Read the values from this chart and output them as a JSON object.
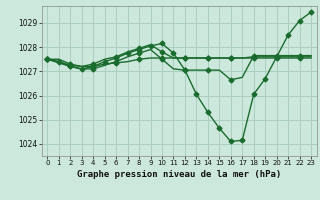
{
  "title": "Graphe pression niveau de la mer (hPa)",
  "background_color": "#cce8dc",
  "grid_color": "#aacfbf",
  "line_color": "#1a6b2e",
  "x_ticks": [
    0,
    1,
    2,
    3,
    4,
    5,
    6,
    7,
    8,
    9,
    10,
    11,
    12,
    13,
    14,
    15,
    16,
    17,
    18,
    19,
    20,
    21,
    22,
    23
  ],
  "ylim": [
    1023.5,
    1029.7
  ],
  "yticks": [
    1024,
    1025,
    1026,
    1027,
    1028,
    1029
  ],
  "series": [
    [
      1027.5,
      1027.5,
      1027.3,
      1027.2,
      1027.2,
      1027.3,
      1027.35,
      1027.4,
      1027.5,
      1027.55,
      1027.55,
      1027.55,
      1027.55,
      1027.55,
      1027.55,
      1027.55,
      1027.55,
      1027.55,
      1027.6,
      1027.6,
      1027.6,
      1027.6,
      1027.6,
      1027.6
    ],
    [
      1027.5,
      1027.4,
      1027.2,
      1027.1,
      1027.2,
      1027.4,
      1027.55,
      1027.75,
      1027.9,
      1028.05,
      1028.15,
      1027.75,
      1027.05,
      1026.05,
      1025.3,
      1024.65,
      1024.1,
      1024.15,
      1026.05,
      1026.7,
      1027.6,
      1028.5,
      1029.1,
      1029.45
    ],
    [
      1027.5,
      1027.35,
      1027.2,
      1027.1,
      1027.1,
      1027.25,
      1027.4,
      1027.6,
      1027.75,
      1027.9,
      1027.5,
      1027.1,
      1027.05,
      1027.05,
      1027.05,
      1027.05,
      1026.65,
      1026.75,
      1027.65,
      1027.65,
      1027.65,
      1027.65,
      1027.65,
      1027.65
    ],
    [
      1027.5,
      1027.4,
      1027.25,
      1027.2,
      1027.3,
      1027.5,
      1027.6,
      1027.8,
      1027.95,
      1028.1,
      1027.8,
      1027.55,
      1027.55,
      1027.55,
      1027.55,
      1027.55,
      1027.55,
      1027.55,
      1027.55,
      1027.55,
      1027.55,
      1027.55,
      1027.55,
      1027.55
    ]
  ],
  "marker_series": 1,
  "marker": "D",
  "marker_size": 2.5,
  "line_width": 1.0,
  "title_fontsize": 6.5,
  "tick_fontsize": 5.0,
  "ytick_fontsize": 5.5
}
